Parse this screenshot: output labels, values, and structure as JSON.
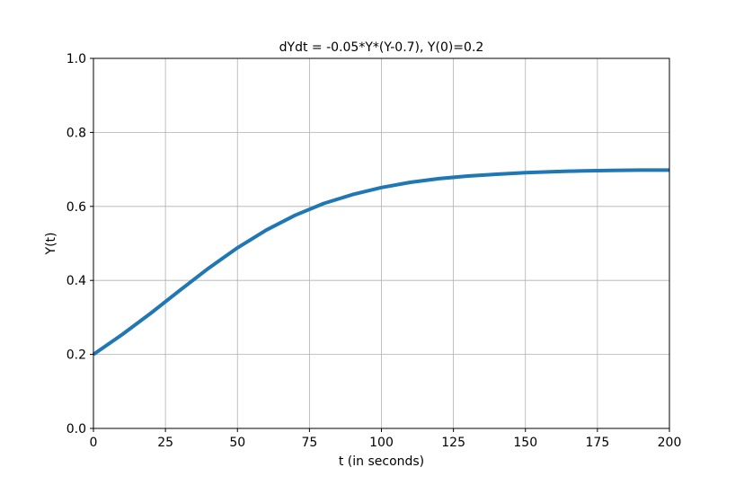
{
  "chart_data": {
    "type": "line",
    "title": "dYdt = -0.05*Y*(Y-0.7), Y(0)=0.2",
    "xlabel": "t (in seconds)",
    "ylabel": "Y(t)",
    "xlim": [
      0,
      200
    ],
    "ylim": [
      0.0,
      1.0
    ],
    "grid": true,
    "x_ticks": [
      "0",
      "25",
      "50",
      "75",
      "100",
      "125",
      "150",
      "175",
      "200"
    ],
    "y_ticks": [
      "0.0",
      "0.2",
      "0.4",
      "0.6",
      "0.8",
      "1.0"
    ],
    "series": [
      {
        "name": "Y(t)",
        "color": "#1f77b4",
        "x": [
          0,
          10,
          20,
          30,
          40,
          50,
          60,
          70,
          80,
          90,
          100,
          110,
          120,
          130,
          140,
          150,
          160,
          170,
          180,
          190,
          200
        ],
        "y": [
          0.2,
          0.254,
          0.312,
          0.373,
          0.433,
          0.488,
          0.536,
          0.576,
          0.608,
          0.632,
          0.651,
          0.665,
          0.675,
          0.682,
          0.687,
          0.691,
          0.694,
          0.696,
          0.697,
          0.698,
          0.698
        ]
      }
    ]
  }
}
